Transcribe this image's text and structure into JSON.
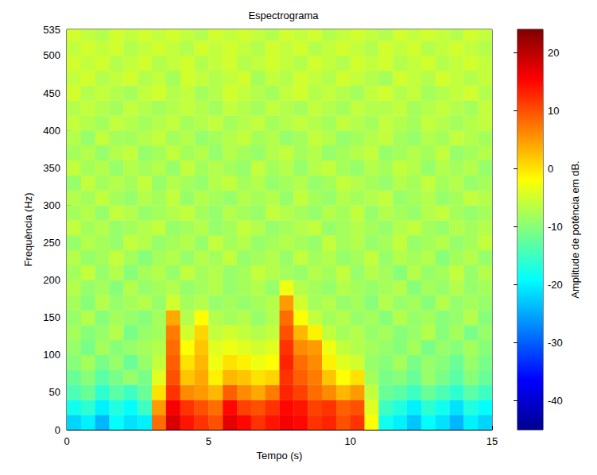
{
  "chart_data": {
    "type": "heatmap",
    "title": "Espectrograma",
    "x_label": "Tempo (s)",
    "y_label": "Frequência (Hz)",
    "xlim": [
      0,
      15
    ],
    "xticks": [
      0,
      5,
      10,
      15
    ],
    "ylim": [
      0,
      535
    ],
    "yticks": [
      0,
      50,
      100,
      150,
      200,
      250,
      300,
      350,
      400,
      450,
      500
    ],
    "x_edges": [
      0,
      0.5,
      1,
      1.5,
      2,
      2.5,
      3,
      3.5,
      4,
      4.5,
      5,
      5.5,
      6,
      6.5,
      7,
      7.5,
      8,
      8.5,
      9,
      9.5,
      10,
      10.5,
      11,
      11.5,
      12,
      12.5,
      13,
      13.5,
      14,
      14.5,
      15
    ],
    "y_edges": [
      0,
      20,
      40,
      60,
      80,
      100,
      120,
      140,
      160,
      180,
      200,
      220,
      240,
      260,
      280,
      300,
      320,
      340,
      360,
      380,
      400,
      420,
      440,
      460,
      480,
      500,
      520,
      535
    ],
    "values": [
      [
        -22,
        -20,
        -24,
        -19,
        -21,
        -20,
        8,
        18,
        14,
        12,
        10,
        17,
        15,
        12,
        14,
        16,
        15,
        12,
        13,
        10,
        12,
        -2,
        -18,
        -20,
        -23,
        -19,
        -21,
        -24,
        -20,
        -22
      ],
      [
        -18,
        -16,
        -20,
        -17,
        -19,
        -15,
        5,
        16,
        12,
        10,
        8,
        15,
        11,
        10,
        12,
        15,
        14,
        11,
        12,
        9,
        10,
        -4,
        -15,
        -17,
        -20,
        -16,
        -18,
        -21,
        -17,
        -19
      ],
      [
        -14,
        -12,
        -16,
        -13,
        -15,
        -12,
        0,
        12,
        6,
        5,
        3,
        9,
        6,
        4,
        7,
        13,
        11,
        8,
        6,
        3,
        5,
        -6,
        -12,
        -13,
        -15,
        -12,
        -14,
        -16,
        -13,
        -15
      ],
      [
        -12,
        -10,
        -13,
        -11,
        -9,
        -11,
        -4,
        10,
        2,
        4,
        -1,
        3,
        2,
        0,
        1,
        12,
        9,
        7,
        2,
        -2,
        0,
        -8,
        -11,
        -10,
        -12,
        -9,
        -11,
        -13,
        -10,
        -12
      ],
      [
        -10,
        -8,
        -11,
        -9,
        -12,
        -9,
        -6,
        9,
        0,
        3,
        -3,
        0,
        -1,
        -3,
        -2,
        13,
        8,
        6,
        -1,
        -4,
        -5,
        -9,
        -10,
        -8,
        -11,
        -9,
        -10,
        -12,
        -9,
        -11
      ],
      [
        -9,
        -11,
        -8,
        -10,
        -9,
        -8,
        -7,
        8,
        -2,
        2,
        -4,
        -3,
        -4,
        -5,
        -4,
        12,
        6,
        5,
        -3,
        -6,
        -7,
        -8,
        -9,
        -10,
        -8,
        -11,
        -9,
        -10,
        -8,
        -10
      ],
      [
        -8,
        -10,
        -9,
        -7,
        -11,
        -9,
        -8,
        7,
        -5,
        1,
        -6,
        -5,
        -6,
        -7,
        -6,
        10,
        3,
        -1,
        -6,
        -8,
        -7,
        -9,
        -8,
        -10,
        -9,
        -7,
        -10,
        -8,
        -11,
        -9
      ],
      [
        -9,
        -7,
        -10,
        -8,
        -9,
        -10,
        -8,
        4,
        -7,
        -2,
        -7,
        -8,
        -7,
        -9,
        -7,
        8,
        -2,
        -6,
        -8,
        -7,
        -9,
        -8,
        -10,
        -7,
        -9,
        -8,
        -10,
        -9,
        -7,
        -10
      ],
      [
        -8,
        -10,
        -7,
        -9,
        -8,
        -7,
        -9,
        -5,
        -8,
        -7,
        -9,
        -8,
        -9,
        -8,
        -7,
        5,
        -5,
        -8,
        -7,
        -9,
        -8,
        -10,
        -7,
        -9,
        -8,
        -10,
        -7,
        -9,
        -8,
        -9
      ],
      [
        -7,
        -9,
        -8,
        -10,
        -7,
        -9,
        -8,
        -7,
        -9,
        -8,
        -7,
        -9,
        -8,
        -7,
        -9,
        -3,
        -7,
        -8,
        -9,
        -7,
        -8,
        -9,
        -8,
        -7,
        -10,
        -8,
        -9,
        -7,
        -9,
        -8
      ],
      [
        -8,
        -6,
        -9,
        -7,
        -10,
        -8,
        -7,
        -9,
        -6,
        -8,
        -7,
        -9,
        -8,
        -6,
        -7,
        -8,
        -9,
        -7,
        -8,
        -6,
        -9,
        -7,
        -8,
        -10,
        -7,
        -9,
        -8,
        -6,
        -9,
        -7
      ],
      [
        -7,
        -9,
        -8,
        -6,
        -8,
        -10,
        -8,
        -7,
        -9,
        -7,
        -8,
        -6,
        -9,
        -8,
        -7,
        -9,
        -6,
        -8,
        -7,
        -9,
        -8,
        -6,
        -9,
        -7,
        -8,
        -7,
        -10,
        -8,
        -7,
        -9
      ],
      [
        -9,
        -7,
        -8,
        -9,
        -6,
        -7,
        -9,
        -8,
        -7,
        -9,
        -6,
        -8,
        -7,
        -9,
        -8,
        -7,
        -8,
        -9,
        -6,
        -8,
        -7,
        -9,
        -8,
        -6,
        -9,
        -8,
        -7,
        -9,
        -8,
        -6
      ],
      [
        -6,
        -8,
        -7,
        -9,
        -8,
        -7,
        -6,
        -9,
        -8,
        -7,
        -9,
        -8,
        -6,
        -7,
        -9,
        -8,
        -7,
        -6,
        -9,
        -8,
        -7,
        -8,
        -9,
        -7,
        -6,
        -8,
        -9,
        -7,
        -8,
        -7
      ],
      [
        -8,
        -7,
        -9,
        -6,
        -7,
        -9,
        -8,
        -7,
        -6,
        -8,
        -9,
        -7,
        -8,
        -9,
        -6,
        -7,
        -8,
        -9,
        -7,
        -8,
        -6,
        -9,
        -7,
        -8,
        -9,
        -7,
        -6,
        -8,
        -9,
        -8
      ],
      [
        -7,
        -8,
        -6,
        -8,
        -9,
        -7,
        -8,
        -6,
        -9,
        -7,
        -8,
        -9,
        -7,
        -8,
        -7,
        -9,
        -6,
        -8,
        -9,
        -7,
        -8,
        -7,
        -6,
        -9,
        -8,
        -7,
        -9,
        -8,
        -6,
        -7
      ],
      [
        -9,
        -6,
        -8,
        -7,
        -8,
        -6,
        -9,
        -7,
        -8,
        -9,
        -7,
        -6,
        -8,
        -7,
        -9,
        -8,
        -7,
        -9,
        -8,
        -6,
        -7,
        -8,
        -9,
        -7,
        -8,
        -6,
        -8,
        -7,
        -9,
        -8
      ],
      [
        -6,
        -8,
        -7,
        -9,
        -7,
        -8,
        -7,
        -9,
        -6,
        -8,
        -7,
        -8,
        -9,
        -6,
        -8,
        -7,
        -9,
        -7,
        -6,
        -8,
        -9,
        -7,
        -8,
        -6,
        -7,
        -9,
        -7,
        -8,
        -7,
        -9
      ],
      [
        -8,
        -7,
        -9,
        -7,
        -6,
        -9,
        -8,
        -6,
        -8,
        -7,
        -9,
        -7,
        -8,
        -9,
        -7,
        -6,
        -8,
        -7,
        -9,
        -8,
        -7,
        -6,
        -9,
        -8,
        -7,
        -8,
        -6,
        -9,
        -8,
        -7
      ],
      [
        -7,
        -9,
        -6,
        -8,
        -8,
        -7,
        -6,
        -8,
        -7,
        -9,
        -8,
        -7,
        -6,
        -8,
        -7,
        -9,
        -8,
        -6,
        -7,
        -9,
        -8,
        -7,
        -6,
        -8,
        -9,
        -7,
        -8,
        -6,
        -7,
        -8
      ],
      [
        -6,
        -7,
        -8,
        -6,
        -7,
        -8,
        -7,
        -6,
        -8,
        -7,
        -6,
        -8,
        -7,
        -6,
        -8,
        -7,
        -6,
        -7,
        -8,
        -6,
        -7,
        -8,
        -6,
        -7,
        -8,
        -6,
        -7,
        -8,
        -7,
        -6
      ],
      [
        -7,
        -6,
        -7,
        -8,
        -6,
        -7,
        -8,
        -7,
        -6,
        -7,
        -8,
        -6,
        -7,
        -8,
        -6,
        -7,
        -8,
        -6,
        -7,
        -8,
        -6,
        -7,
        -7,
        -6,
        -8,
        -7,
        -6,
        -7,
        -8,
        -6
      ],
      [
        -5,
        -7,
        -6,
        -7,
        -8,
        -6,
        -5,
        -7,
        -6,
        -8,
        -7,
        -5,
        -6,
        -7,
        -8,
        -6,
        -5,
        -7,
        -6,
        -7,
        -8,
        -6,
        -5,
        -7,
        -6,
        -8,
        -7,
        -6,
        -5,
        -7
      ],
      [
        -6,
        -5,
        -7,
        -6,
        -5,
        -7,
        -6,
        -8,
        -5,
        -6,
        -7,
        -6,
        -5,
        -8,
        -6,
        -7,
        -5,
        -6,
        -7,
        -5,
        -6,
        -7,
        -8,
        -5,
        -6,
        -7,
        -5,
        -6,
        -7,
        -6
      ],
      [
        -5,
        -6,
        -5,
        -7,
        -6,
        -5,
        -7,
        -6,
        -5,
        -7,
        -6,
        -5,
        -7,
        -6,
        -5,
        -6,
        -7,
        -5,
        -6,
        -7,
        -5,
        -6,
        -5,
        -7,
        -6,
        -5,
        -7,
        -6,
        -5,
        -6
      ],
      [
        -6,
        -5,
        -6,
        -5,
        -7,
        -6,
        -5,
        -6,
        -7,
        -5,
        -6,
        -5,
        -6,
        -7,
        -5,
        -6,
        -5,
        -7,
        -6,
        -5,
        -6,
        -7,
        -5,
        -6,
        -5,
        -7,
        -6,
        -5,
        -6,
        -7
      ],
      [
        -5,
        -6,
        -7,
        -5,
        -6,
        -5,
        -6,
        -5,
        -6,
        -7,
        -5,
        -6,
        -5,
        -6,
        -7,
        -5,
        -6,
        -5,
        -7,
        -6,
        -5,
        -6,
        -7,
        -5,
        -6,
        -5,
        -6,
        -7,
        -5,
        -6
      ]
    ],
    "colorbar": {
      "label": "Amplitude de potência em dB.",
      "range": [
        -45,
        24
      ],
      "ticks": [
        -40,
        -30,
        -20,
        -10,
        0,
        10,
        20
      ]
    }
  }
}
